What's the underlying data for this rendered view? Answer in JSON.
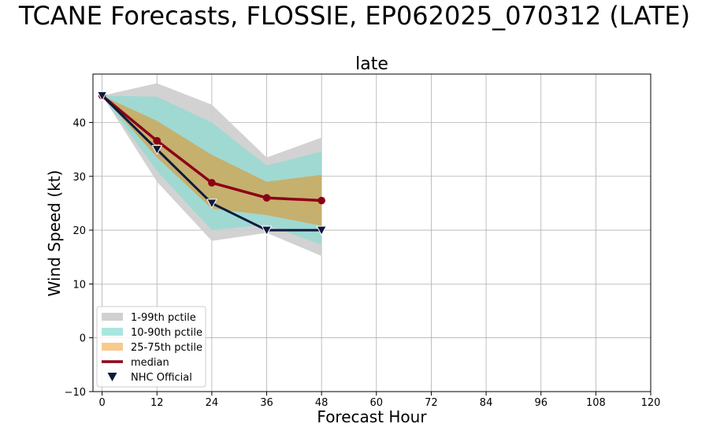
{
  "chart_data": {
    "type": "line",
    "suptitle": "TCANE Forecasts, FLOSSIE, EP062025_070312 (LATE)",
    "title": "late",
    "xlabel": "Forecast Hour",
    "ylabel": "Wind Speed (kt)",
    "xlim": [
      -2,
      120
    ],
    "ylim": [
      -10,
      49
    ],
    "xticks": [
      0,
      12,
      24,
      36,
      48,
      60,
      72,
      84,
      96,
      108,
      120
    ],
    "yticks": [
      -10,
      0,
      10,
      20,
      30,
      40
    ],
    "grid": true,
    "legend_position": "lower-left",
    "x": [
      0,
      12,
      24,
      36,
      48
    ],
    "bands": [
      {
        "name": "1-99th pctile",
        "color": "#d0d0d0",
        "lower": [
          45,
          29,
          18,
          19.5,
          15.2
        ],
        "upper": [
          45,
          47.3,
          43.3,
          33.5,
          37.2
        ]
      },
      {
        "name": "10-90th pctile",
        "color": "#9dd9d2",
        "lower": [
          45,
          31,
          20,
          21,
          17.3
        ],
        "upper": [
          45,
          44.8,
          40,
          32,
          34.6
        ]
      },
      {
        "name": "25-75th pctile",
        "color": "#c8ae68",
        "lower": [
          45,
          33.5,
          24,
          22.8,
          20.8
        ],
        "upper": [
          45,
          40.3,
          34,
          29,
          30.3
        ]
      }
    ],
    "series": [
      {
        "name": "median",
        "color": "#8b0016",
        "values": [
          45,
          36.6,
          28.8,
          26,
          25.5
        ]
      },
      {
        "name": "NHC Official",
        "color": "#0e1a3e",
        "values": [
          45,
          35,
          25,
          20,
          20
        ]
      }
    ],
    "legend": [
      {
        "label": "1-99th pctile",
        "color": "#d0d0d0",
        "kind": "patch"
      },
      {
        "label": "10-90th pctile",
        "color": "#a9e6e0",
        "kind": "patch"
      },
      {
        "label": "25-75th pctile",
        "color": "#f9c98d",
        "kind": "patch"
      },
      {
        "label": "median",
        "color": "#8b0016",
        "kind": "line"
      },
      {
        "label": "NHC Official",
        "color": "#0e1a3e",
        "kind": "marker"
      }
    ]
  }
}
